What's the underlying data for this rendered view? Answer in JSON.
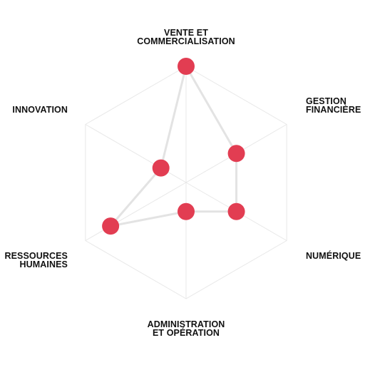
{
  "chart_data": {
    "type": "radar",
    "title": "",
    "axes": [
      {
        "key": "vente",
        "lines": [
          "VENTE ET",
          "COMMERCIALISATION"
        ]
      },
      {
        "key": "gestion",
        "lines": [
          "GESTION",
          "FINANCIÈRE"
        ]
      },
      {
        "key": "numerique",
        "lines": [
          "NUMÉRIQUE"
        ]
      },
      {
        "key": "administration",
        "lines": [
          "ADMINISTRATION",
          "ET OPÉRATION"
        ]
      },
      {
        "key": "rh",
        "lines": [
          "RESSOURCES",
          "HUMAINES"
        ]
      },
      {
        "key": "innovation",
        "lines": [
          "INNOVATION"
        ]
      }
    ],
    "values": [
      4,
      2,
      2,
      1,
      3,
      1
    ],
    "scale_max": 4,
    "grid": true,
    "colors": {
      "point": "#e23d52",
      "line": "#e3e3e3",
      "grid": "#e8e8e8"
    }
  }
}
